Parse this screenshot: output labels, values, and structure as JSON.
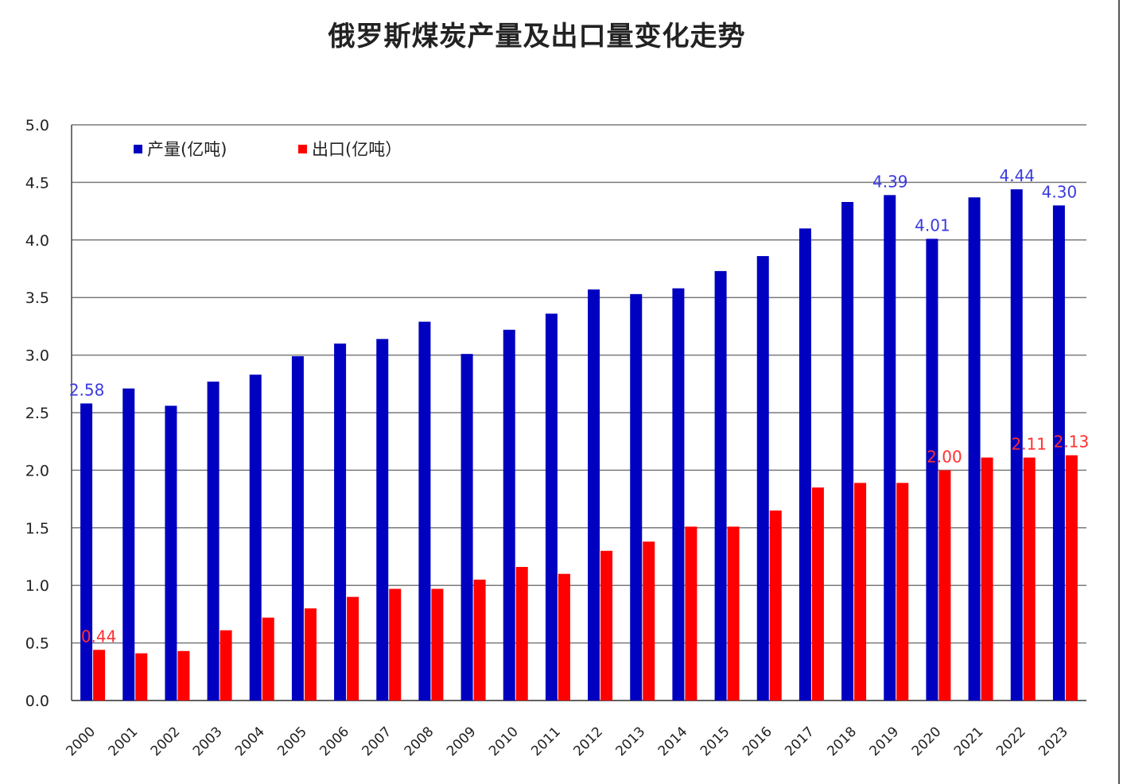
{
  "chart_data": {
    "type": "bar",
    "title": "俄罗斯煤炭产量及出口量变化走势",
    "categories": [
      "2000",
      "2001",
      "2002",
      "2003",
      "2004",
      "2005",
      "2006",
      "2007",
      "2008",
      "2009",
      "2010",
      "2011",
      "2012",
      "2013",
      "2014",
      "2015",
      "2016",
      "2017",
      "2018",
      "2019",
      "2020",
      "2021",
      "2022",
      "2023"
    ],
    "series": [
      {
        "name": "产量(亿吨)",
        "color": "#0000c0",
        "label_color": "#3a3ae0",
        "values": [
          2.58,
          2.71,
          2.56,
          2.77,
          2.83,
          2.99,
          3.1,
          3.14,
          3.29,
          3.01,
          3.22,
          3.36,
          3.57,
          3.53,
          3.58,
          3.73,
          3.86,
          4.1,
          4.33,
          4.39,
          4.01,
          4.37,
          4.44,
          4.3
        ],
        "data_labels": [
          {
            "category": "2000",
            "text": "2.58"
          },
          {
            "category": "2019",
            "text": "4.39"
          },
          {
            "category": "2020",
            "text": "4.01"
          },
          {
            "category": "2022",
            "text": "4.44"
          },
          {
            "category": "2023",
            "text": "4.30"
          }
        ]
      },
      {
        "name": "出口(亿吨）",
        "color": "#ff0000",
        "label_color": "#ff3030",
        "values": [
          0.44,
          0.41,
          0.43,
          0.61,
          0.72,
          0.8,
          0.9,
          0.97,
          0.97,
          1.05,
          1.16,
          1.1,
          1.3,
          1.38,
          1.51,
          1.51,
          1.65,
          1.85,
          1.89,
          1.89,
          2.0,
          2.11,
          2.11,
          2.13
        ],
        "data_labels": [
          {
            "category": "2000",
            "text": "0.44"
          },
          {
            "category": "2020",
            "text": "2.00"
          },
          {
            "category": "2022",
            "text": "2.11"
          },
          {
            "category": "2023",
            "text": "2.13"
          }
        ]
      }
    ],
    "y_ticks": [
      "0.0",
      "0.5",
      "1.0",
      "1.5",
      "2.0",
      "2.5",
      "3.0",
      "3.5",
      "4.0",
      "4.5",
      "5.0"
    ],
    "ylim": [
      0,
      5
    ],
    "grid": true,
    "legend_position": "top-left"
  }
}
